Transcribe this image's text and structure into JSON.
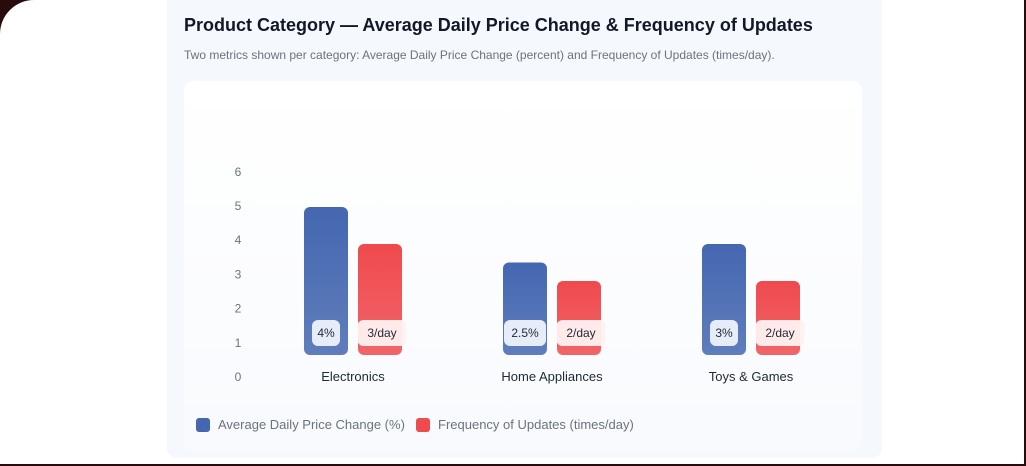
{
  "title": "Product Category — Average Daily Price Change & Frequency of Updates",
  "subtitle": "Two metrics shown per category: Average Daily Price Change (percent) and Frequency of Updates (times/day).",
  "chart_data": {
    "type": "bar",
    "categories": [
      "Electronics",
      "Home Appliances",
      "Toys & Games"
    ],
    "series": [
      {
        "name": "Average Daily Price Change (%)",
        "values": [
          4,
          2.5,
          3
        ],
        "labels": [
          "4%",
          "2.5%",
          "3%"
        ],
        "color": "#4467b0"
      },
      {
        "name": "Frequency of Updates (times/day)",
        "values": [
          3,
          2,
          2
        ],
        "labels": [
          "3/day",
          "2/day",
          "2/day"
        ],
        "color": "#ef4a4e"
      }
    ],
    "yticks": [
      "0",
      "1",
      "2",
      "3",
      "4",
      "5",
      "6"
    ],
    "ylim": [
      0,
      6
    ],
    "grid": false,
    "legend": "bottom-left"
  }
}
